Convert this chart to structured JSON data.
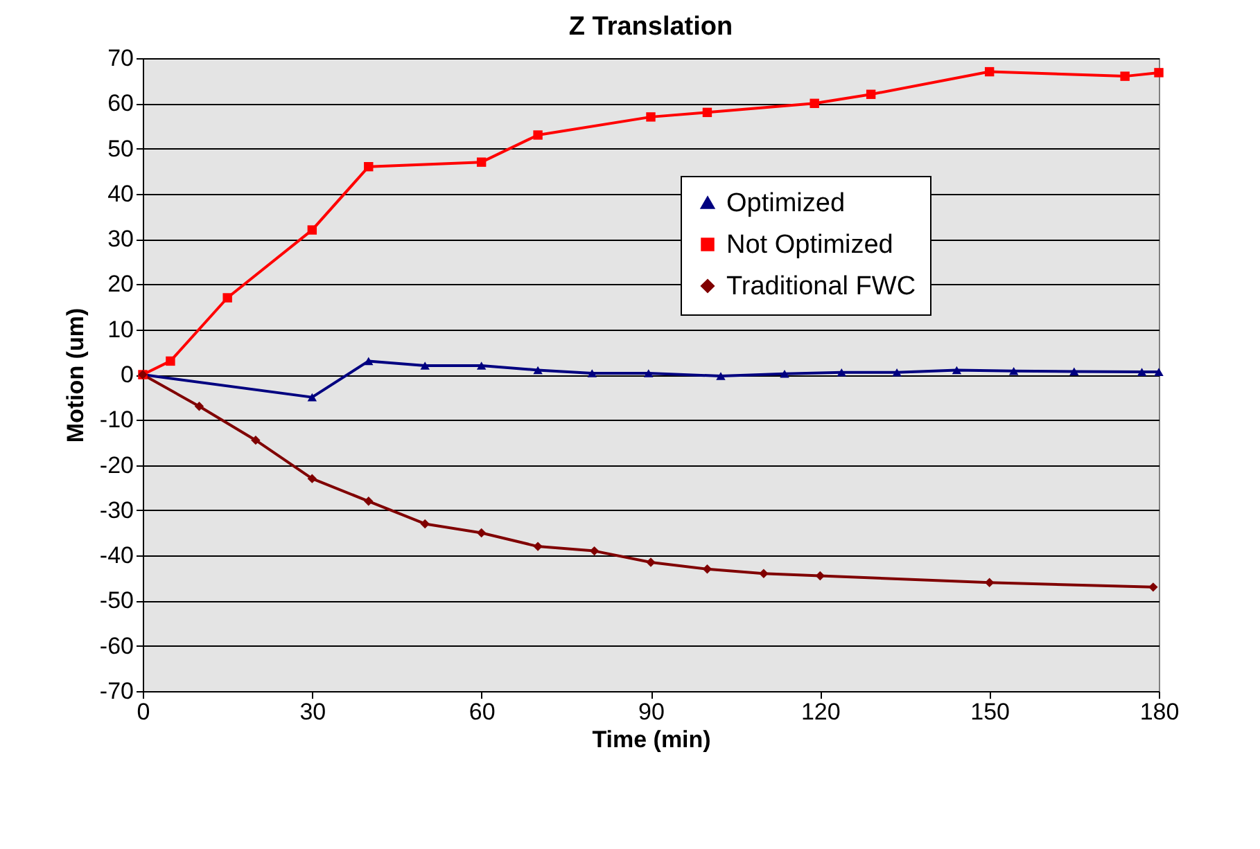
{
  "chart_data": {
    "type": "line",
    "title": "Z Translation",
    "xlabel": "Time (min)",
    "ylabel": "Motion (um)",
    "xlim": [
      0,
      180
    ],
    "xticks": [
      0,
      30,
      60,
      90,
      120,
      150,
      180
    ],
    "ylim": [
      -70,
      70
    ],
    "yticks": [
      -70,
      -60,
      -50,
      -40,
      -30,
      -20,
      -10,
      0,
      10,
      20,
      30,
      40,
      50,
      60,
      70
    ],
    "grid": "y",
    "legend": "right",
    "line_style": "solid",
    "series": [
      {
        "name": "Optimized",
        "color": "#000080",
        "marker": "triangle",
        "x": [
          0,
          30,
          40,
          50,
          60,
          70,
          79.6,
          89.6,
          102.4,
          113.7,
          123.8,
          133.6,
          144.2,
          154.3,
          165,
          177,
          180
        ],
        "values": [
          0,
          -5,
          3,
          2,
          2,
          1,
          0.3,
          0.3,
          -0.3,
          0.2,
          0.5,
          0.5,
          1,
          0.8,
          0.7,
          0.6,
          0.6
        ]
      },
      {
        "name": "Not Optimized",
        "color": "#ff0000",
        "marker": "square",
        "x": [
          0,
          4.9,
          15,
          30,
          40,
          60,
          70,
          90,
          100,
          119,
          129,
          150,
          174,
          180
        ],
        "values": [
          0,
          3,
          17,
          32,
          46,
          47,
          53,
          57,
          58,
          60,
          62,
          67,
          66,
          66.8
        ]
      },
      {
        "name": "Traditional FWC",
        "color": "#800000",
        "marker": "diamond",
        "x": [
          0,
          10,
          20,
          30,
          40,
          50,
          60,
          70,
          80,
          90,
          100,
          110,
          120,
          150,
          179
        ],
        "values": [
          0,
          -7,
          -14.5,
          -23,
          -28,
          -33,
          -35,
          -38,
          -39,
          -41.5,
          -43,
          -44,
          -44.5,
          -46,
          -47
        ]
      }
    ]
  }
}
